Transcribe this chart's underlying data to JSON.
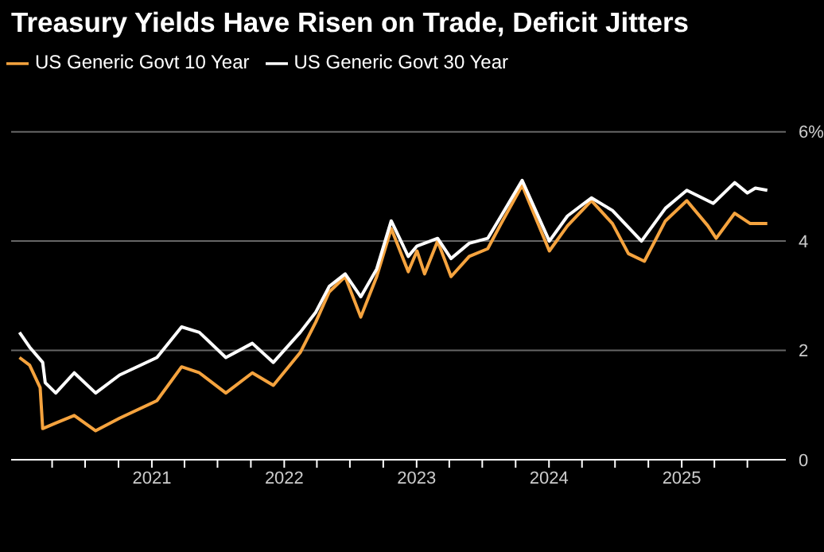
{
  "chart_data": {
    "type": "line",
    "title": "Treasury Yields Have Risen on Trade, Deficit Jitters",
    "xlim": [
      "2019-12-10",
      "2025-10-15"
    ],
    "xticks": [
      {
        "value": "2020-04-01",
        "label": null
      },
      {
        "value": "2020-07-01",
        "label": null
      },
      {
        "value": "2020-10-01",
        "label": null
      },
      {
        "value": "2021-01-01",
        "label": "2021"
      },
      {
        "value": "2021-04-01",
        "label": null
      },
      {
        "value": "2021-07-01",
        "label": null
      },
      {
        "value": "2021-10-01",
        "label": null
      },
      {
        "value": "2022-01-01",
        "label": "2022"
      },
      {
        "value": "2022-04-01",
        "label": null
      },
      {
        "value": "2022-07-01",
        "label": null
      },
      {
        "value": "2022-10-01",
        "label": null
      },
      {
        "value": "2023-01-01",
        "label": "2023"
      },
      {
        "value": "2023-04-01",
        "label": null
      },
      {
        "value": "2023-07-01",
        "label": null
      },
      {
        "value": "2023-10-01",
        "label": null
      },
      {
        "value": "2024-01-01",
        "label": "2024"
      },
      {
        "value": "2024-04-01",
        "label": null
      },
      {
        "value": "2024-07-01",
        "label": null
      },
      {
        "value": "2024-10-01",
        "label": null
      },
      {
        "value": "2025-01-01",
        "label": "2025"
      },
      {
        "value": "2025-04-01",
        "label": null
      },
      {
        "value": "2025-07-01",
        "label": null
      }
    ],
    "ylim": [
      0,
      6
    ],
    "yticks": [
      0,
      2,
      4,
      {
        "value": 6,
        "label": "6%"
      }
    ],
    "grid": "y",
    "legend": "top left",
    "marker": "none",
    "line_style": "solid",
    "series": [
      {
        "name": "US Generic Govt 10 Year",
        "color": "#f5a33e",
        "x": [
          "2020-01-02",
          "2020-01-30",
          "2020-02-28",
          "2020-03-06",
          "2020-04-11",
          "2020-06-01",
          "2020-07-30",
          "2020-10-04",
          "2021-01-15",
          "2021-03-24",
          "2021-05-12",
          "2021-07-24",
          "2021-10-05",
          "2021-12-02",
          "2022-02-14",
          "2022-03-29",
          "2022-05-05",
          "2022-06-18",
          "2022-07-31",
          "2022-09-13",
          "2022-10-23",
          "2022-12-09",
          "2023-01-02",
          "2023-01-23",
          "2023-02-28",
          "2023-04-06",
          "2023-05-26",
          "2023-07-16",
          "2023-08-22",
          "2023-10-19",
          "2024-01-02",
          "2024-02-21",
          "2024-04-27",
          "2024-06-24",
          "2024-08-07",
          "2024-09-20",
          "2024-11-17",
          "2025-01-15",
          "2025-03-14",
          "2025-04-06",
          "2025-05-27",
          "2025-07-09",
          "2025-08-25"
        ],
        "values": [
          1.87,
          1.73,
          1.32,
          0.57,
          0.67,
          0.81,
          0.53,
          0.76,
          1.08,
          1.7,
          1.59,
          1.22,
          1.59,
          1.36,
          1.96,
          2.52,
          3.07,
          3.35,
          2.61,
          3.35,
          4.23,
          3.44,
          3.82,
          3.4,
          4.0,
          3.35,
          3.72,
          3.86,
          4.32,
          5.02,
          3.82,
          4.28,
          4.74,
          4.32,
          3.77,
          3.63,
          4.37,
          4.74,
          4.28,
          4.05,
          4.51,
          4.32,
          4.32
        ]
      },
      {
        "name": "US Generic Govt 30 Year",
        "color": "#ffffff",
        "x": [
          "2020-01-02",
          "2020-01-30",
          "2020-03-06",
          "2020-03-13",
          "2020-04-11",
          "2020-06-01",
          "2020-07-30",
          "2020-10-04",
          "2021-01-15",
          "2021-03-24",
          "2021-05-12",
          "2021-07-24",
          "2021-10-05",
          "2021-12-02",
          "2022-02-14",
          "2022-03-29",
          "2022-05-05",
          "2022-06-18",
          "2022-07-31",
          "2022-09-13",
          "2022-10-23",
          "2022-12-09",
          "2023-01-02",
          "2023-02-28",
          "2023-04-06",
          "2023-05-26",
          "2023-07-16",
          "2023-08-22",
          "2023-10-19",
          "2024-01-02",
          "2024-02-21",
          "2024-04-27",
          "2024-06-24",
          "2024-09-12",
          "2024-11-17",
          "2025-01-15",
          "2025-03-29",
          "2025-05-27",
          "2025-07-01",
          "2025-07-23",
          "2025-08-25"
        ],
        "values": [
          2.33,
          2.06,
          1.78,
          1.41,
          1.22,
          1.59,
          1.22,
          1.55,
          1.87,
          2.43,
          2.33,
          1.87,
          2.13,
          1.78,
          2.33,
          2.7,
          3.17,
          3.4,
          2.98,
          3.49,
          4.37,
          3.72,
          3.91,
          4.05,
          3.68,
          3.96,
          4.05,
          4.46,
          5.11,
          4.0,
          4.46,
          4.79,
          4.56,
          4.0,
          4.6,
          4.93,
          4.69,
          5.07,
          4.88,
          4.97,
          4.93
        ]
      }
    ]
  }
}
